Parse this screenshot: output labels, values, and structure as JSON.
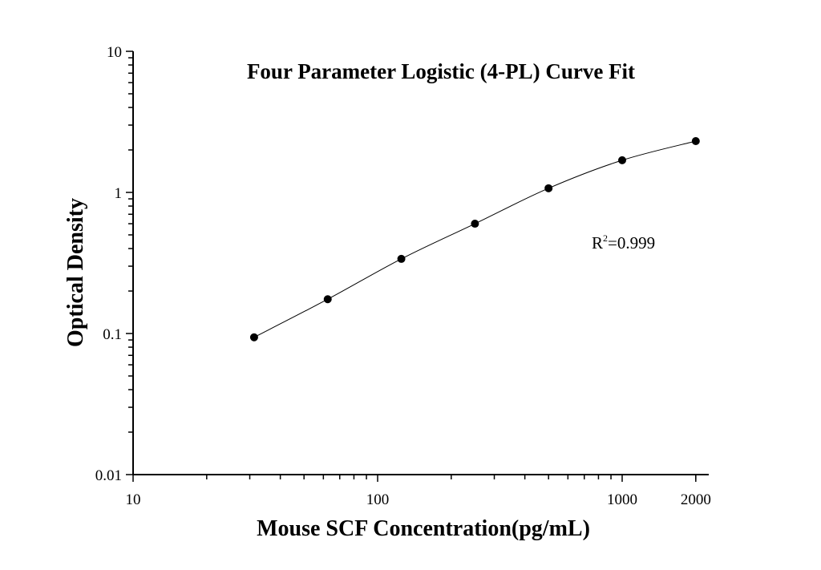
{
  "chart_data": {
    "type": "scatter",
    "title": "Four Parameter Logistic (4-PL) Curve Fit",
    "xlabel": "Mouse SCF Concentration(pg/mL)",
    "ylabel": "Optical Density",
    "xscale": "log",
    "yscale": "log",
    "xlim": [
      10,
      2300
    ],
    "ylim": [
      0.01,
      10
    ],
    "xticks": [
      10,
      100,
      1000,
      2000
    ],
    "xtick_labels": [
      "10",
      "100",
      "1000",
      "2000"
    ],
    "yticks": [
      0.01,
      0.1,
      1,
      10
    ],
    "ytick_labels": [
      "0.01",
      "0.1",
      "1",
      "10"
    ],
    "grid": false,
    "annotation": {
      "r_label": "R",
      "sup": "2",
      "value_text": "=0.999"
    },
    "series": [
      {
        "x": [
          31.25,
          62.5,
          125,
          250,
          500,
          1000,
          2000
        ],
        "y": [
          0.094,
          0.175,
          0.338,
          0.6,
          1.07,
          1.69,
          2.31
        ],
        "marker": "circle",
        "fit": "4-PL",
        "color": "#000000"
      }
    ]
  }
}
